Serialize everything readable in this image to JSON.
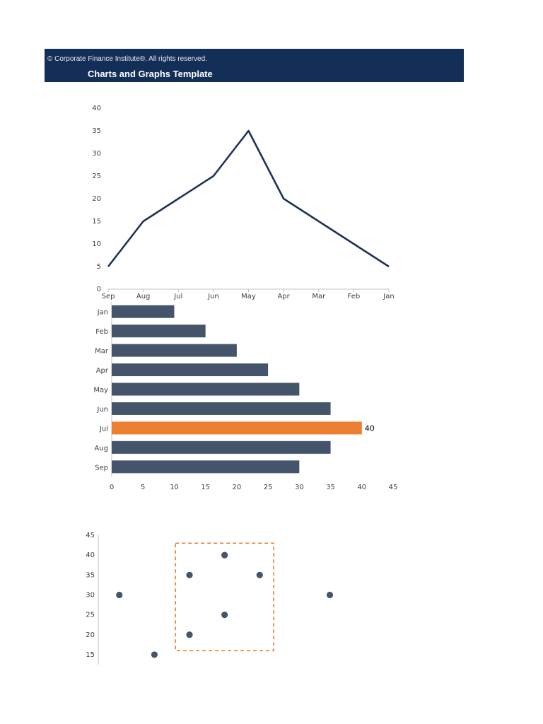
{
  "header": {
    "copyright": "© Corporate Finance Institute®. All rights reserved.",
    "title": "Charts and Graphs Template"
  },
  "colors": {
    "banner": "#132e57",
    "line": "#1c3358",
    "bar": "#44546a",
    "highlight": "#ed7d31",
    "scatter": "#44546a",
    "axis": "#bfbfbf"
  },
  "chart_data": [
    {
      "type": "line",
      "categories": [
        "Sep",
        "Aug",
        "Jul",
        "Jun",
        "May",
        "Apr",
        "Mar",
        "Feb",
        "Jan"
      ],
      "series": [
        {
          "values": [
            5,
            15,
            20,
            25,
            35,
            20,
            15,
            10,
            5
          ]
        }
      ],
      "ylim": [
        0,
        40
      ],
      "yticks": [
        0,
        5,
        10,
        15,
        20,
        25,
        30,
        35,
        40
      ],
      "grid": false
    },
    {
      "type": "bar",
      "orientation": "horizontal",
      "categories": [
        "Jan",
        "Feb",
        "Mar",
        "Apr",
        "May",
        "Jun",
        "Jul",
        "Aug",
        "Sep"
      ],
      "values": [
        10,
        15,
        20,
        25,
        30,
        35,
        40,
        35,
        30
      ],
      "highlight_category": "Jul",
      "data_labels": {
        "Jul": "40"
      },
      "xlim": [
        0,
        45
      ],
      "xticks": [
        0,
        5,
        10,
        15,
        20,
        25,
        30,
        35,
        40,
        45
      ],
      "grid": false
    },
    {
      "type": "scatter",
      "points": [
        {
          "x": 1,
          "y": 30
        },
        {
          "x": 2,
          "y": 15
        },
        {
          "x": 3,
          "y": 35
        },
        {
          "x": 3,
          "y": 20
        },
        {
          "x": 4,
          "y": 40
        },
        {
          "x": 4,
          "y": 25
        },
        {
          "x": 5,
          "y": 35
        },
        {
          "x": 7,
          "y": 30
        }
      ],
      "xlim": [
        0.4,
        8.4
      ],
      "ylim": [
        12.5,
        45
      ],
      "yticks": [
        15,
        20,
        25,
        30,
        35,
        40,
        45
      ],
      "highlight_box": {
        "x": [
          2.6,
          5.4
        ],
        "y": [
          16,
          43
        ]
      },
      "grid": false
    }
  ]
}
